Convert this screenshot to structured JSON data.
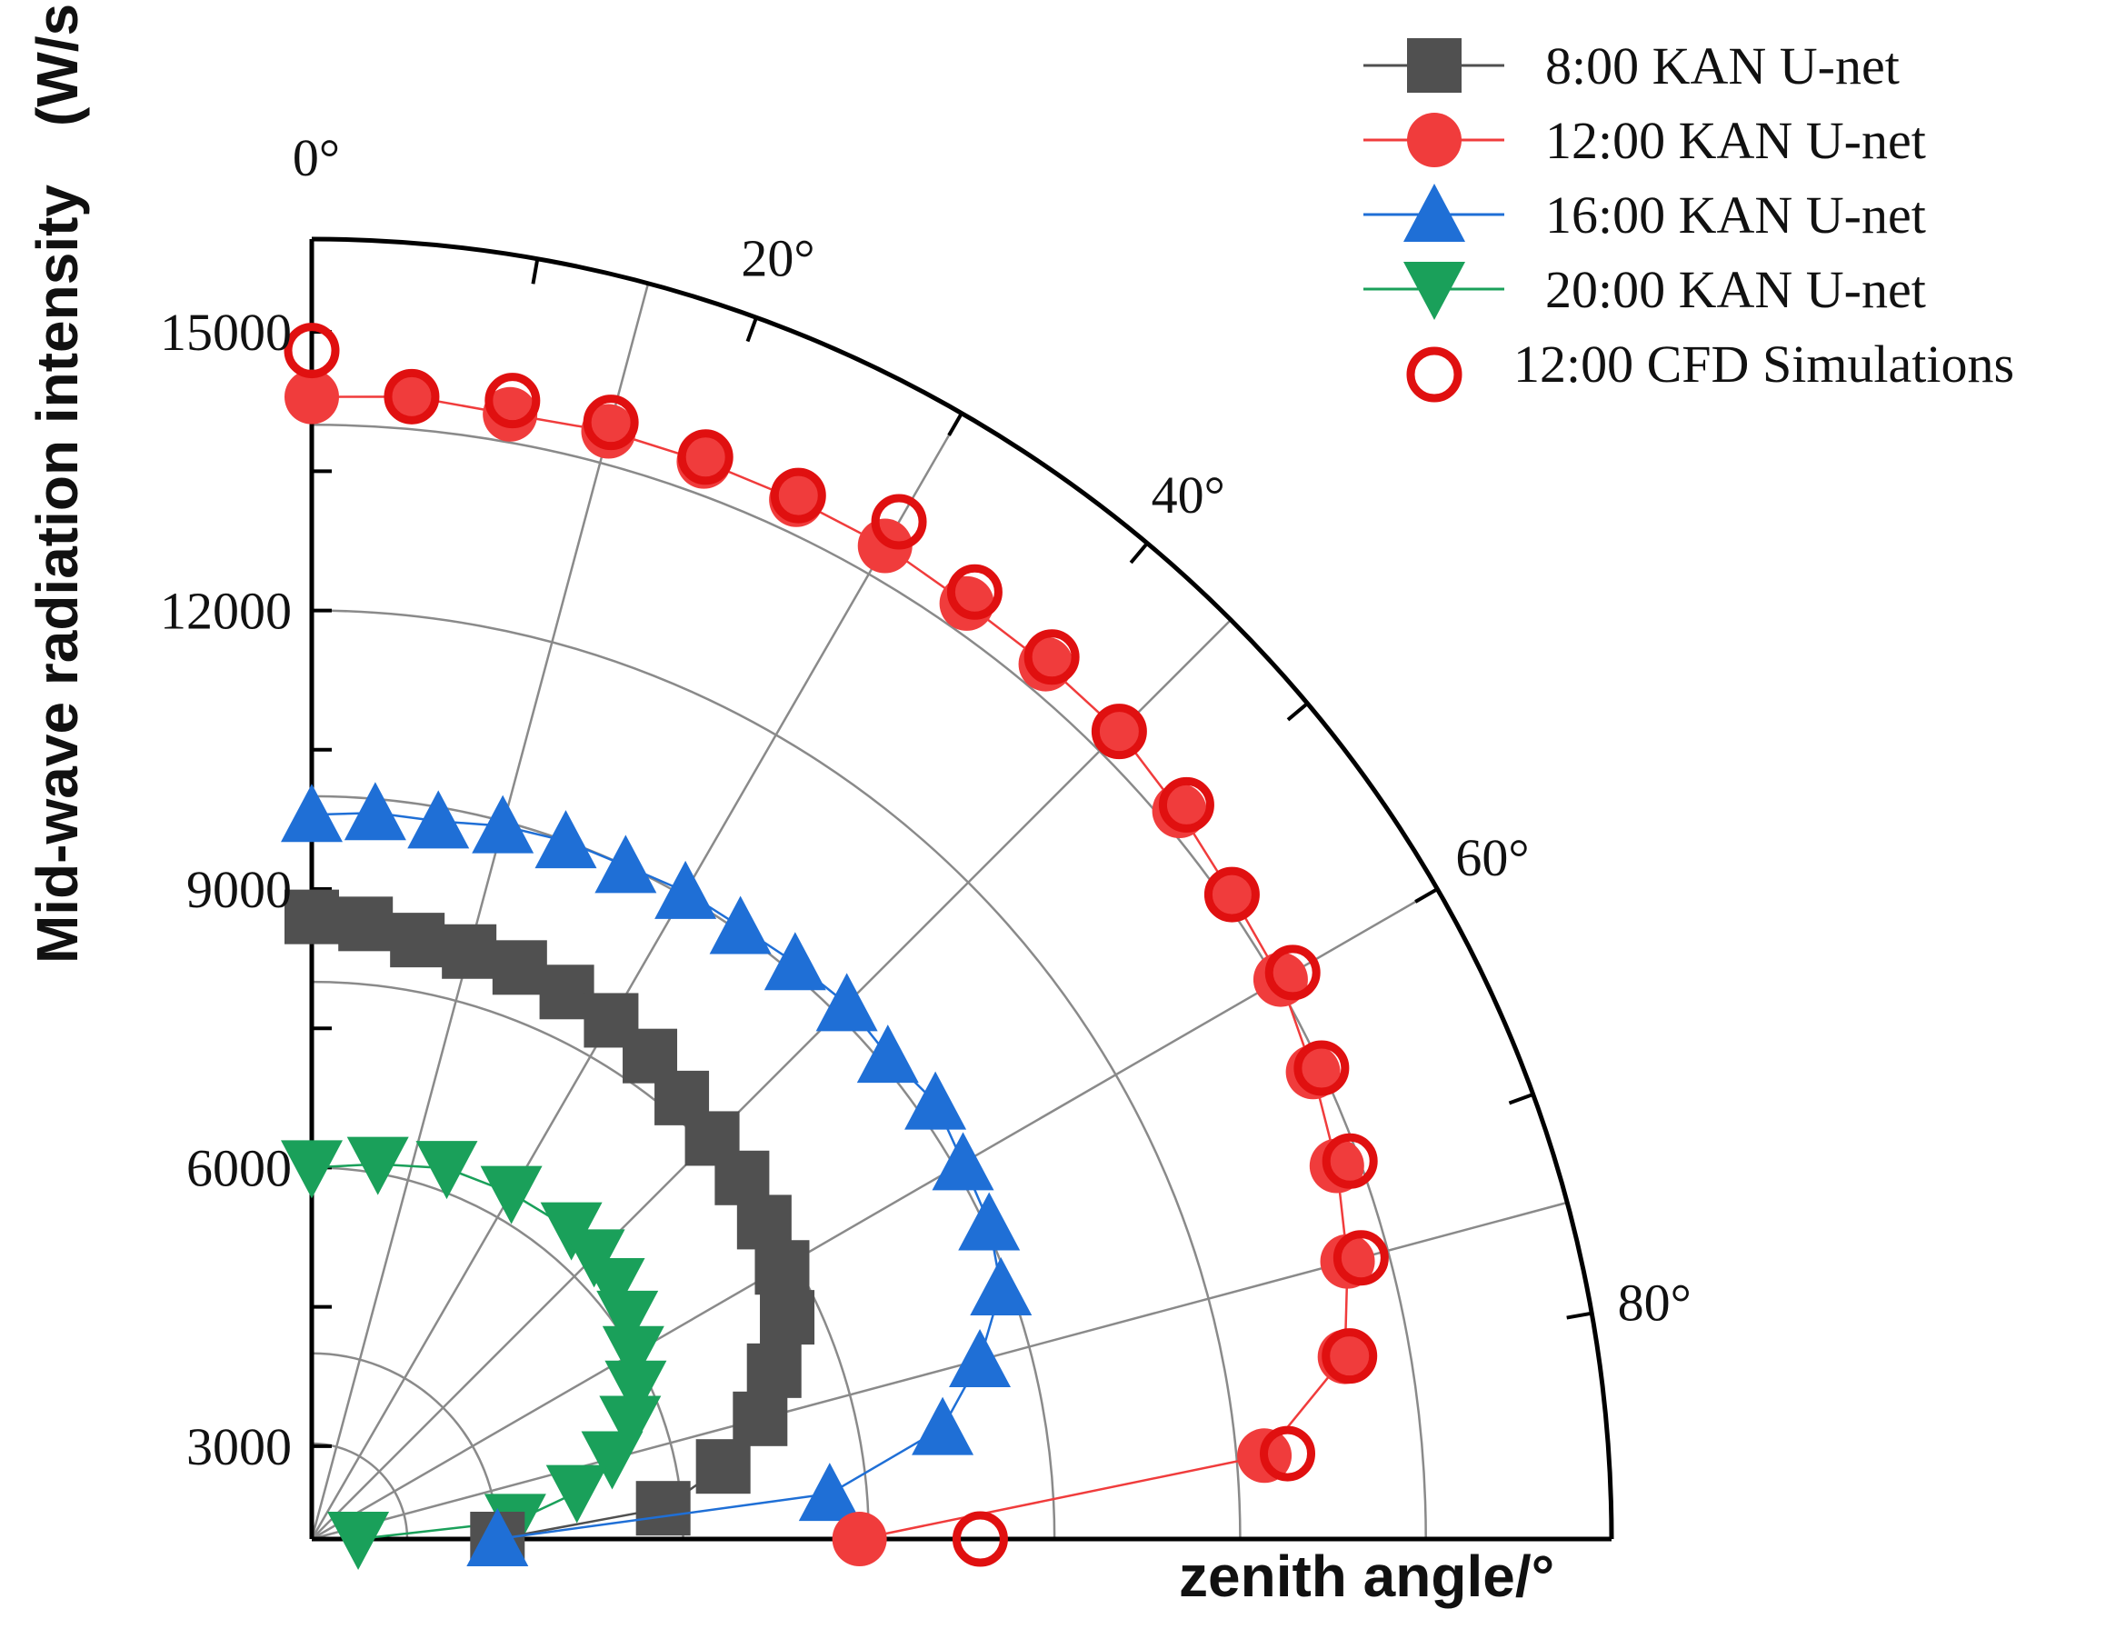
{
  "chart_data": {
    "type": "scatter",
    "subtype": "polar-quarter",
    "title": "",
    "ylabel": "Mid-wave radiation intensity　(W/sr)",
    "xlabel": "zenith angle/°",
    "radial_axis": {
      "min": 2000,
      "max": 16000,
      "ticks": [
        3000,
        6000,
        9000,
        12000,
        15000
      ],
      "unit": "W/sr"
    },
    "angular_axis": {
      "min": 0,
      "max": 90,
      "labelled_ticks": [
        "0°",
        "20°",
        "40°",
        "60°",
        "80°"
      ],
      "tick_values": [
        0,
        20,
        40,
        60,
        80
      ]
    },
    "grid": true,
    "legend_position": "top-right",
    "series": [
      {
        "name": "8:00 KAN U-net",
        "color": "#505050",
        "marker": "square",
        "theta": [
          0,
          5,
          10,
          15,
          20,
          25,
          30,
          35,
          40,
          45,
          50,
          55,
          60,
          65,
          70,
          75,
          80,
          85,
          90
        ],
        "r": [
          8700,
          8650,
          8550,
          8550,
          8550,
          8500,
          8450,
          8350,
          8200,
          8100,
          8050,
          7950,
          7850,
          7650,
          7300,
          7000,
          6500,
          5800,
          4000
        ]
      },
      {
        "name": "12:00 KAN U-net",
        "color": "#f03c3c",
        "marker": "circle",
        "theta": [
          0,
          5,
          10,
          15,
          20,
          25,
          30,
          35,
          40,
          45,
          50,
          55,
          60,
          65,
          70,
          75,
          80,
          85,
          90
        ],
        "r": [
          14300,
          14350,
          14300,
          14350,
          14350,
          14350,
          14350,
          14300,
          14300,
          14300,
          14200,
          14100,
          14050,
          13900,
          13750,
          13550,
          13300,
          12300,
          7900
        ]
      },
      {
        "name": "16:00 KAN U-net",
        "color": "#1f6fd6",
        "marker": "triangle-up",
        "theta": [
          0,
          5,
          10,
          15,
          20,
          25,
          30,
          35,
          40,
          45,
          50,
          55,
          60,
          65,
          70,
          75,
          80,
          85,
          90
        ],
        "r": [
          9800,
          9850,
          9850,
          9950,
          10000,
          10000,
          10050,
          10050,
          10100,
          10150,
          10100,
          10200,
          10100,
          10050,
          9900,
          9450,
          8900,
          7600,
          4000
        ]
      },
      {
        "name": "20:00 KAN U-net",
        "color": "#1aa05a",
        "marker": "triangle-down",
        "theta": [
          0,
          10,
          20,
          30,
          40,
          45,
          50,
          55,
          60,
          65,
          70,
          75,
          80,
          85,
          90
        ],
        "r": [
          6000,
          6100,
          6250,
          6300,
          6350,
          6300,
          6250,
          6150,
          6000,
          5850,
          5650,
          5350,
          4900,
          4200,
          2500
        ]
      },
      {
        "name": "12:00 CFD Simulations",
        "color": "#e01010",
        "marker": "circle-open",
        "theta": [
          0,
          5,
          10,
          15,
          20,
          25,
          30,
          35,
          40,
          45,
          50,
          55,
          60,
          65,
          70,
          75,
          80,
          85,
          90
        ],
        "r": [
          14800,
          14350,
          14450,
          14450,
          14400,
          14400,
          14650,
          14450,
          14400,
          14300,
          14300,
          14100,
          14200,
          14000,
          13900,
          13700,
          13350,
          12550,
          9200
        ]
      }
    ]
  }
}
